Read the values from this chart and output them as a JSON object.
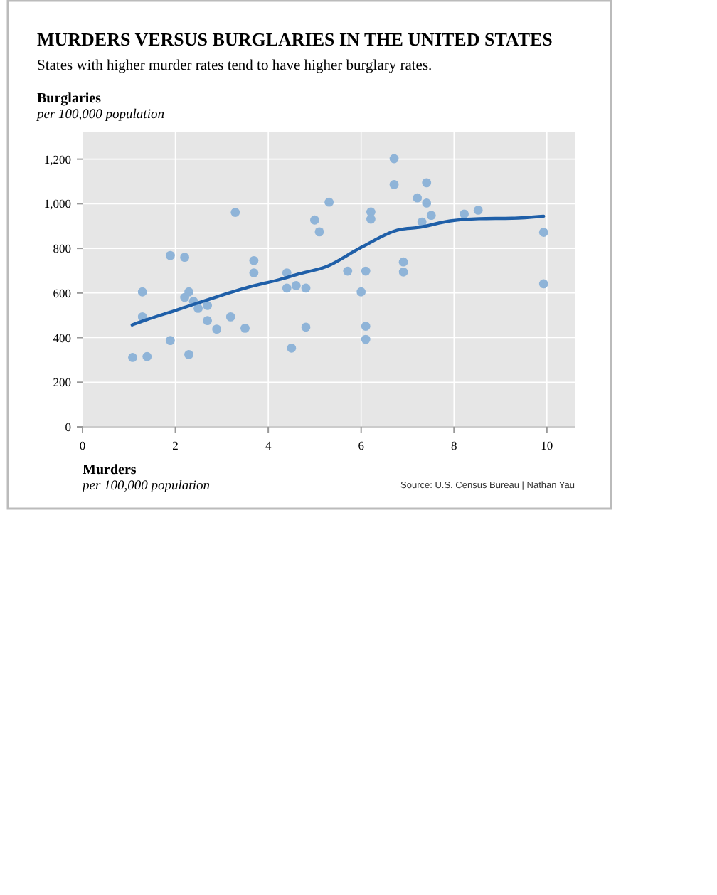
{
  "chart_data": {
    "type": "scatter",
    "title": "MURDERS VERSUS BURGLARIES IN THE UNITED STATES",
    "subtitle": "States with higher murder rates tend to have higher burglary rates.",
    "xlabel": "Murders\nper 100,000 population",
    "ylabel": "Burglaries\nper 100,000 population",
    "annotations": [
      "Source: U.S. Census Bureau | Nathan Yau"
    ],
    "xlim": [
      0,
      10.6
    ],
    "ylim": [
      0,
      1320
    ],
    "xticks": [
      0,
      2,
      4,
      6,
      8,
      10
    ],
    "yticks": [
      0,
      200,
      400,
      600,
      800,
      {
        "value": 1000,
        "label": "1,000"
      },
      {
        "value": 1200,
        "label": "1,200"
      }
    ],
    "grid": true,
    "marker": "circle",
    "series": [
      {
        "color": "#8fb4d8",
        "x": [
          1.08,
          1.39,
          1.29,
          1.29,
          1.89,
          2.2,
          1.89,
          2.2,
          2.29,
          2.39,
          2.49,
          2.69,
          2.69,
          2.29,
          2.89,
          3.29,
          3.19,
          3.5,
          3.69,
          3.69,
          4.4,
          4.4,
          4.6,
          4.81,
          4.81,
          4.5,
          5.0,
          5.1,
          5.31,
          5.71,
          6.1,
          6.0,
          6.1,
          6.1,
          6.21,
          6.21,
          6.71,
          6.71,
          6.91,
          6.91,
          7.21,
          7.41,
          7.41,
          7.31,
          7.51,
          8.22,
          8.52,
          9.93,
          9.93
        ],
        "values": [
          311,
          315,
          605,
          493,
          768,
          760,
          387,
          580,
          605,
          563,
          531,
          544,
          476,
          324,
          438,
          961,
          493,
          442,
          745,
          690,
          690,
          622,
          633,
          622,
          447,
          353,
          927,
          874,
          1007,
          698,
          698,
          605,
          451,
          392,
          963,
          931,
          1202,
          1086,
          739,
          694,
          1026,
          1094,
          1003,
          918,
          948,
          954,
          971,
          872,
          641
        ]
      },
      {
        "type": "line",
        "color": "#1f5fa8",
        "marker": "none",
        "x": [
          1.07,
          1.38,
          1.99,
          2.91,
          3.63,
          4.24,
          4.65,
          5.27,
          5.98,
          6.85,
          7.21,
          7.92,
          8.54,
          9.25,
          9.93
        ],
        "values": [
          457,
          480,
          521,
          584,
          629,
          660,
          685,
          720,
          802,
          885,
          893,
          923,
          933,
          935,
          944
        ]
      }
    ]
  }
}
